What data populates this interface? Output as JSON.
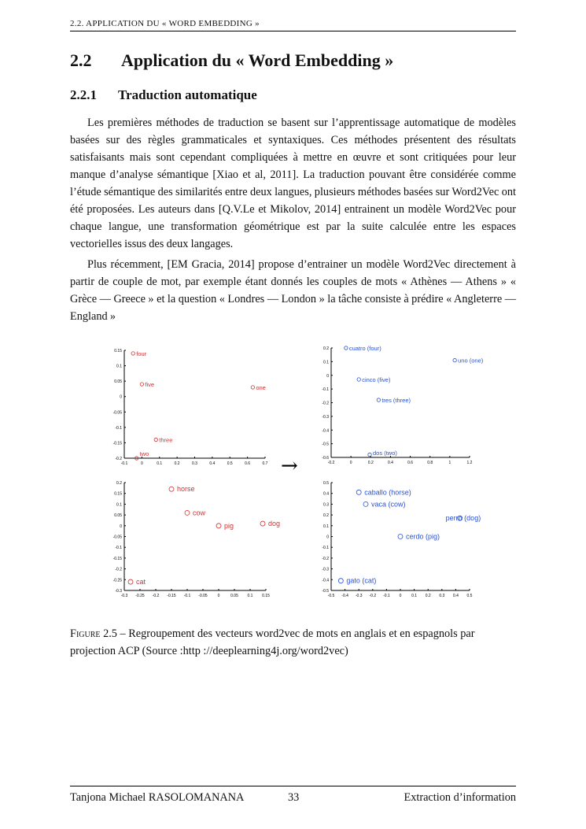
{
  "running_header": "2.2.   APPLICATION DU « WORD EMBEDDING »",
  "section": {
    "number": "2.2",
    "title": "Application du « Word Embedding »"
  },
  "subsection": {
    "number": "2.2.1",
    "title": "Traduction automatique"
  },
  "paragraphs": [
    "Les premières méthodes de traduction se basent sur l’apprentissage automatique de modèles basées sur des règles grammaticales et syntaxiques. Ces méthodes présentent des résultats satisfaisants mais sont cependant compliquées à mettre en œuvre et sont critiquées pour leur manque d’analyse sémantique [Xiao et al, 2011]. La traduction pouvant être considérée comme l’étude sémantique des similarités entre deux langues, plusieurs méthodes basées sur Word2Vec ont été proposées. Les auteurs dans [Q.V.Le et Mikolov, 2014] entrainent un modèle Word2Vec pour chaque langue, une transformation géométrique est par la suite calculée entre les espaces vectorielles issus des deux langages.",
    "Plus récemment, [EM Gracia, 2014] propose d’entrainer un modèle Word2Vec directement à partir de couple de mot, par exemple étant donnés les couples de mots « Athènes — Athens » « Grèce — Greece » et la question « Londres — London » la tâche consiste à prédire « Angleterre — England »"
  ],
  "figure": {
    "label": "Figure 2.5",
    "caption": " – Regroupement des vecteurs word2vec de mots en anglais et en espagnols par projection ACP (Source :http ://deeplearning4j.org/word2vec)",
    "arrow": "→"
  },
  "chart_data": [
    {
      "type": "scatter",
      "color": "#d03030",
      "xlim": [
        -0.1,
        0.7
      ],
      "ylim": [
        -0.2,
        0.15
      ],
      "xticks": [
        -0.1,
        0,
        0.1,
        0.2,
        0.3,
        0.4,
        0.5,
        0.6,
        0.7
      ],
      "yticks": [
        0.15,
        0.1,
        0.05,
        0,
        -0.05,
        -0.1,
        -0.15,
        -0.2
      ],
      "points": [
        {
          "label": "four",
          "x": -0.05,
          "y": 0.14
        },
        {
          "label": "five",
          "x": 0.0,
          "y": 0.04
        },
        {
          "label": "one",
          "x": 0.63,
          "y": 0.03
        },
        {
          "label": "three",
          "x": 0.08,
          "y": -0.14
        },
        {
          "label": "two",
          "x": -0.03,
          "y": -0.2
        }
      ]
    },
    {
      "type": "scatter",
      "color": "#2850d8",
      "xlim": [
        -0.2,
        1.2
      ],
      "ylim": [
        -0.6,
        0.2
      ],
      "xticks": [
        -0.2,
        0,
        0.2,
        0.4,
        0.6,
        0.8,
        1,
        1.2
      ],
      "yticks": [
        0.2,
        0.1,
        0,
        -0.1,
        -0.2,
        -0.3,
        -0.4,
        -0.5,
        -0.6
      ],
      "points": [
        {
          "label": "cuatro (four)",
          "x": -0.05,
          "y": 0.2
        },
        {
          "label": "uno (one)",
          "x": 1.05,
          "y": 0.11
        },
        {
          "label": "cinco (five)",
          "x": 0.08,
          "y": -0.03
        },
        {
          "label": "tres (three)",
          "x": 0.28,
          "y": -0.18
        },
        {
          "label": "dos (two)",
          "x": 0.19,
          "y": -0.58
        }
      ]
    },
    {
      "type": "scatter",
      "color": "#d03030",
      "xlim": [
        -0.3,
        0.15
      ],
      "ylim": [
        -0.3,
        0.2
      ],
      "xticks": [
        -0.3,
        -0.25,
        -0.2,
        -0.15,
        -0.1,
        -0.05,
        0,
        0.05,
        0.1,
        0.15
      ],
      "yticks": [
        0.2,
        0.15,
        0.1,
        0.05,
        0,
        -0.05,
        -0.1,
        -0.15,
        -0.2,
        -0.25,
        -0.3
      ],
      "points": [
        {
          "label": "horse",
          "x": -0.15,
          "y": 0.17
        },
        {
          "label": "cow",
          "x": -0.1,
          "y": 0.06
        },
        {
          "label": "pig",
          "x": 0.0,
          "y": 0.0
        },
        {
          "label": "dog",
          "x": 0.14,
          "y": 0.01
        },
        {
          "label": "cat",
          "x": -0.28,
          "y": -0.26
        }
      ]
    },
    {
      "type": "scatter",
      "color": "#2850d8",
      "xlim": [
        -0.5,
        0.5
      ],
      "ylim": [
        -0.5,
        0.5
      ],
      "xticks": [
        -0.5,
        -0.4,
        -0.3,
        -0.2,
        -0.1,
        0,
        0.1,
        0.2,
        0.3,
        0.4,
        0.5
      ],
      "yticks": [
        0.5,
        0.4,
        0.3,
        0.2,
        0.1,
        0,
        -0.1,
        -0.2,
        -0.3,
        -0.4,
        -0.5
      ],
      "points": [
        {
          "label": "caballo (horse)",
          "x": -0.3,
          "y": 0.41
        },
        {
          "label": "vaca (cow)",
          "x": -0.25,
          "y": 0.3
        },
        {
          "label": "perro (dog)",
          "x": 0.43,
          "y": 0.17
        },
        {
          "label": "cerdo (pig)",
          "x": 0.0,
          "y": 0.0
        },
        {
          "label": "gato (cat)",
          "x": -0.43,
          "y": -0.41
        }
      ]
    }
  ],
  "footer": {
    "author": "Tanjona Michael RASOLOMANANA",
    "page": "33",
    "chapter": "Extraction d’information"
  }
}
